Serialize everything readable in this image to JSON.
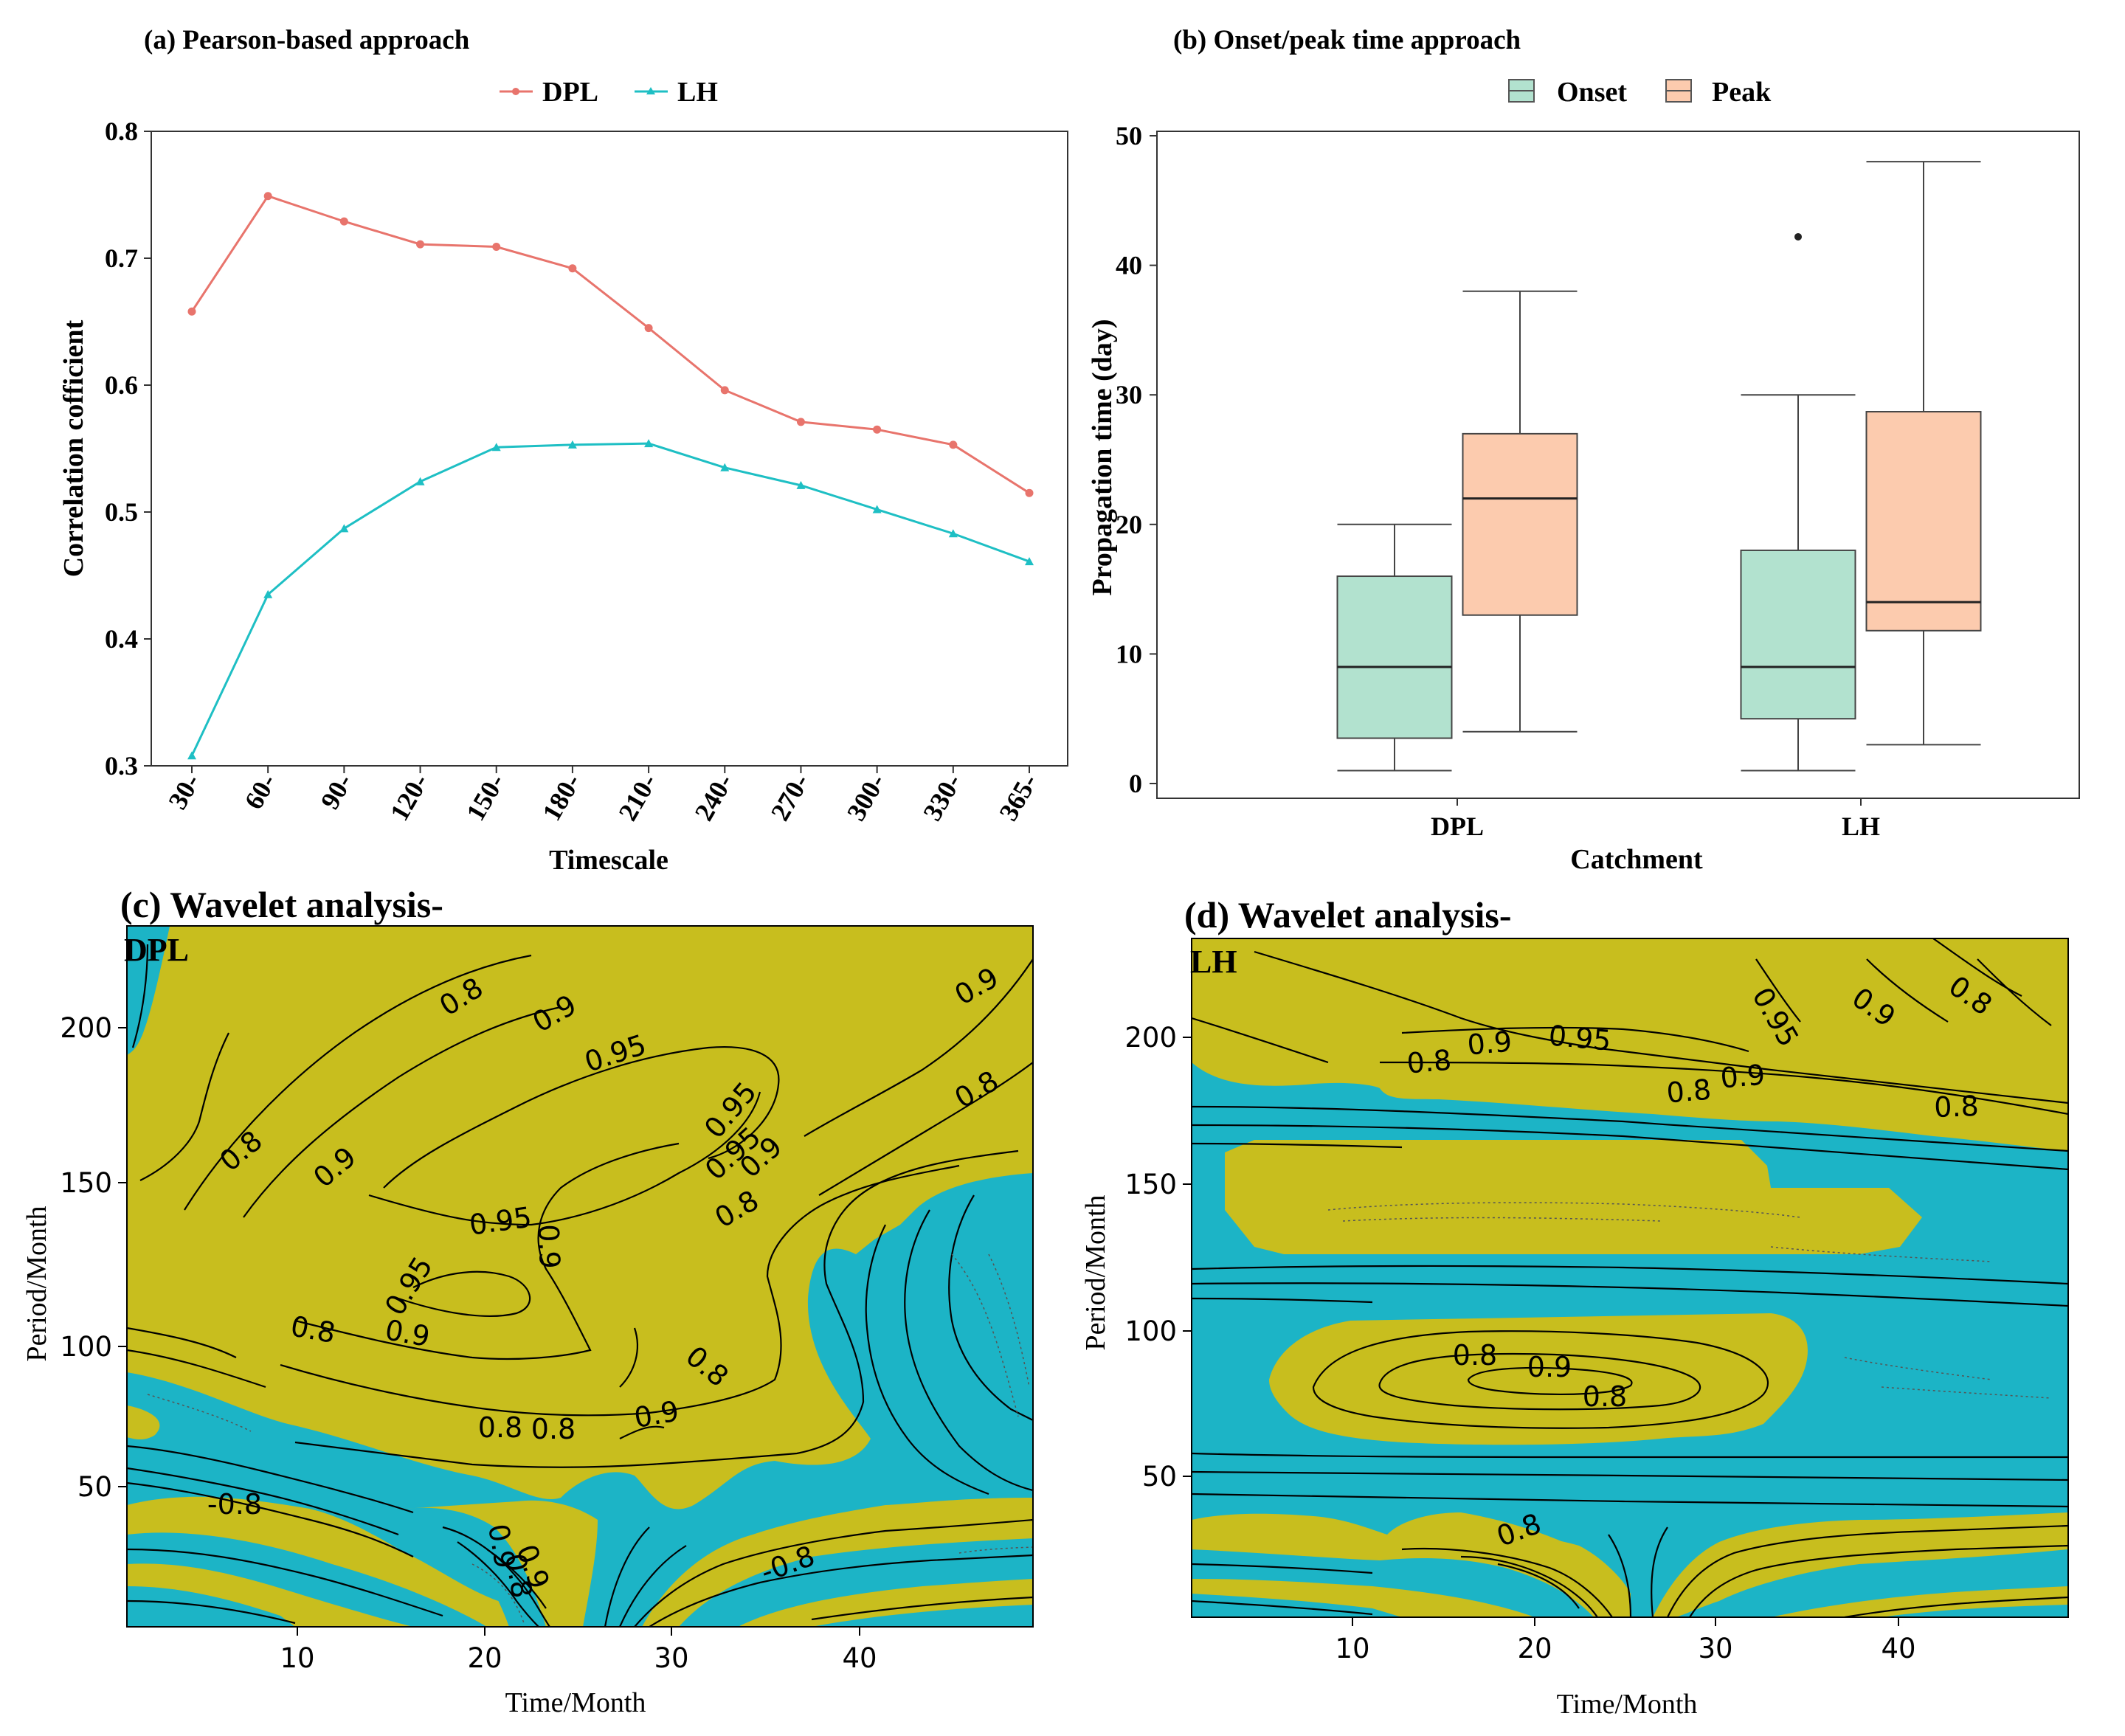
{
  "chart_data": [
    {
      "panel": "a",
      "type": "line",
      "title": "(a) Pearson-based approach",
      "xlabel": "Timescale",
      "ylabel": "Correlation cofficient",
      "ylim": [
        0.3,
        0.8
      ],
      "yticks": [
        "0.3",
        "0.4",
        "0.5",
        "0.6",
        "0.7",
        "0.8"
      ],
      "categories": [
        "30-",
        "60-",
        "90-",
        "120-",
        "150-",
        "180-",
        "210-",
        "240-",
        "270-",
        "300-",
        "330-",
        "365-"
      ],
      "legend_position": "top",
      "series": [
        {
          "name": "DPL",
          "color": "#E8746C",
          "values": [
            0.658,
            0.749,
            0.729,
            0.711,
            0.709,
            0.692,
            0.645,
            0.596,
            0.571,
            0.565,
            0.553,
            0.515
          ]
        },
        {
          "name": "LH",
          "color": "#1EBFC4",
          "values": [
            0.308,
            0.435,
            0.487,
            0.524,
            0.551,
            0.553,
            0.554,
            0.535,
            0.521,
            0.502,
            0.483,
            0.461
          ]
        }
      ]
    },
    {
      "panel": "b",
      "type": "box",
      "title": "(b) Onset/peak time approach",
      "xlabel": "Catchment",
      "ylabel": "Propagation time (day)",
      "ylim": [
        0,
        50
      ],
      "yticks": [
        "0",
        "10",
        "20",
        "30",
        "40",
        "50"
      ],
      "categories": [
        "DPL",
        "LH"
      ],
      "legend_position": "top",
      "series": [
        {
          "name": "Onset",
          "color": "#B2E2CF",
          "boxes": [
            {
              "min": 1,
              "q1": 3.5,
              "median": 9,
              "q3": 16,
              "max": 20,
              "outliers": []
            },
            {
              "min": 1,
              "q1": 5,
              "median": 9,
              "q3": 18,
              "max": 30,
              "outliers": [
                42.2
              ]
            }
          ]
        },
        {
          "name": "Peak",
          "color": "#FCCBAE",
          "boxes": [
            {
              "min": 4,
              "q1": 13,
              "median": 22,
              "q3": 27,
              "max": 38,
              "outliers": []
            },
            {
              "min": 3,
              "q1": 11.8,
              "median": 14,
              "q3": 28.7,
              "max": 48,
              "outliers": []
            }
          ]
        }
      ]
    },
    {
      "panel": "c",
      "type": "heatmap",
      "title": "(c) Wavelet analysis-",
      "subtitle": "DPL",
      "xlabel": "Time/Month",
      "ylabel": "Period/Month",
      "xticks": [
        "10",
        "20",
        "30",
        "40"
      ],
      "yticks": [
        "50",
        "100",
        "150",
        "200"
      ],
      "colors": {
        "high": "#C8BE1E",
        "low": "#1CB4C6"
      },
      "contour_labels": [
        "0.8",
        "0.9",
        "0.95",
        "0.9",
        "0.8",
        "0.8",
        "0.9",
        "0.95",
        "0.95",
        "0.9",
        "0.8",
        "0.95",
        "0.9",
        "0.95",
        "0.8",
        "0.9",
        "0.8",
        "0.8",
        "0.9",
        "0.9",
        "0.8",
        "-0.8",
        "0.9",
        "0.8",
        "-0.8"
      ]
    },
    {
      "panel": "d",
      "type": "heatmap",
      "title": "(d) Wavelet analysis-",
      "subtitle": "LH",
      "xlabel": "Time/Month",
      "ylabel": "Period/Month",
      "xticks": [
        "10",
        "20",
        "30",
        "40"
      ],
      "yticks": [
        "50",
        "100",
        "150",
        "200"
      ],
      "colors": {
        "high": "#C8BE1E",
        "low": "#1CB4C6"
      },
      "contour_labels": [
        "0.8",
        "0.9",
        "0.95",
        "0.95",
        "0.9",
        "0.8",
        "0.8",
        "0.9",
        "0.8",
        "0.8",
        "0.9",
        "0.8",
        "0.8"
      ]
    }
  ]
}
